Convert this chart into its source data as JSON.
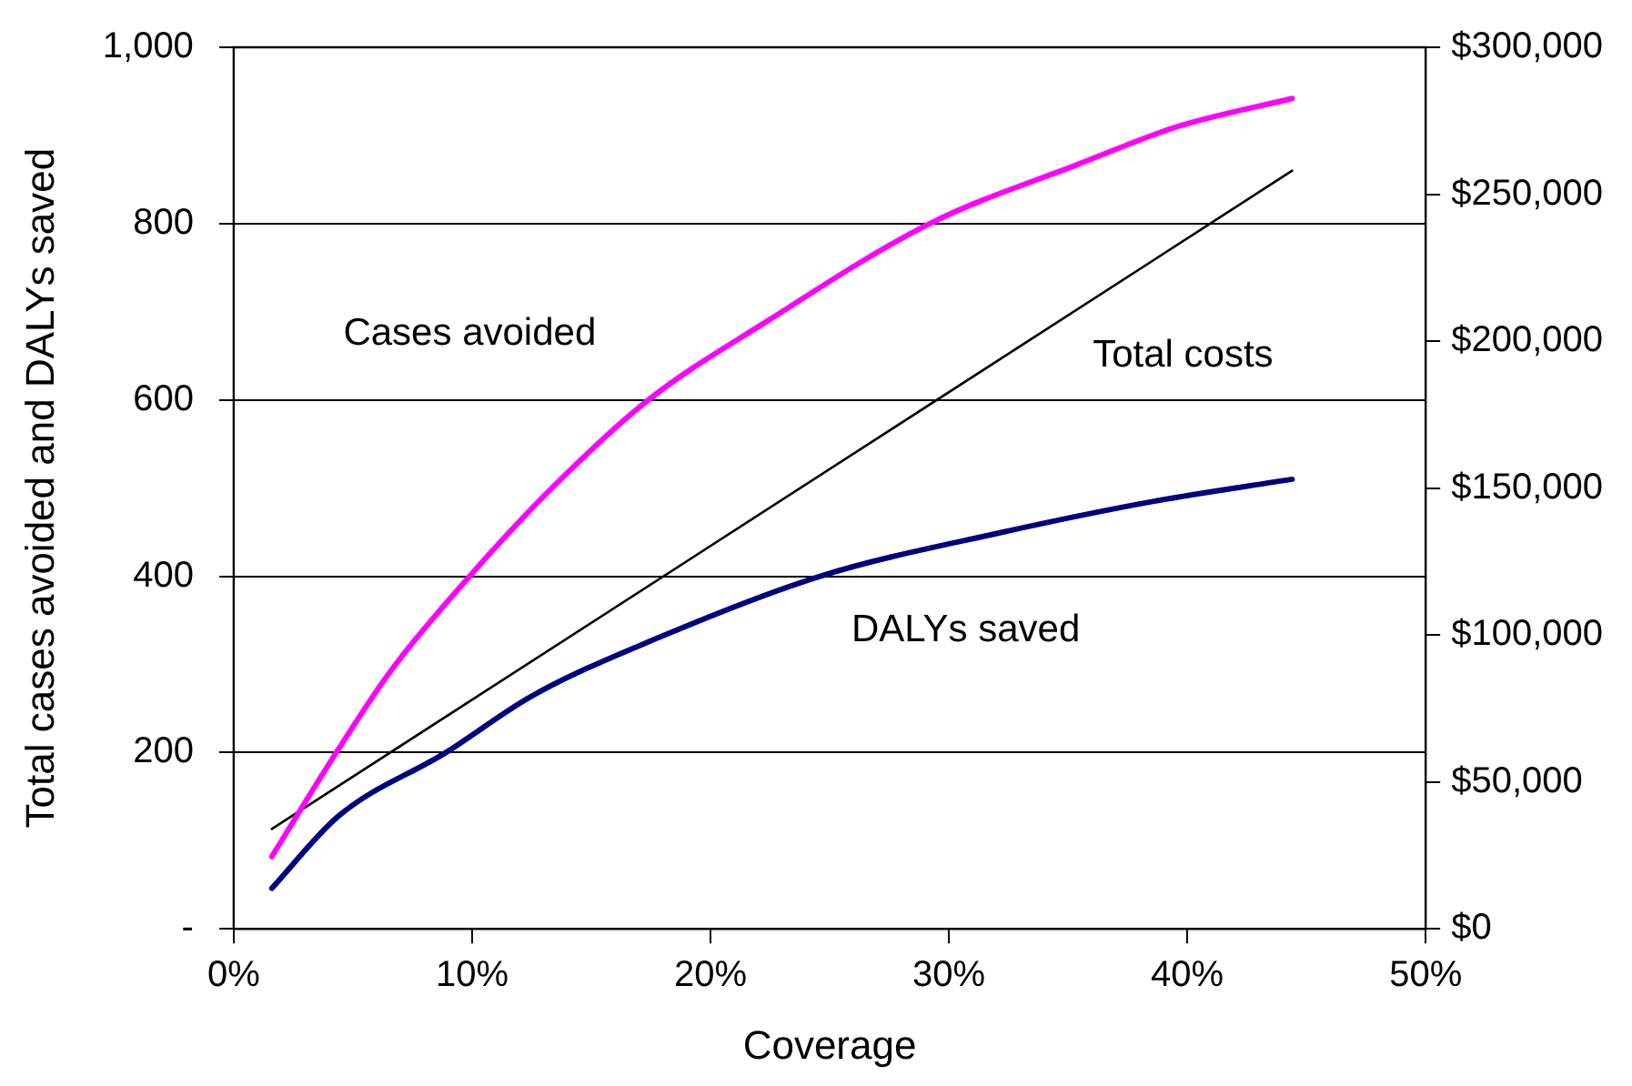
{
  "chart_data": {
    "type": "line",
    "xlabel": "Coverage",
    "ylabel": "Total cases avoided and DALYs saved",
    "xlim": [
      0,
      50
    ],
    "xticks": [
      {
        "value": 0,
        "label": "0%"
      },
      {
        "value": 10,
        "label": "10%"
      },
      {
        "value": 20,
        "label": "20%"
      },
      {
        "value": 30,
        "label": "30%"
      },
      {
        "value": 40,
        "label": "40%"
      },
      {
        "value": 50,
        "label": "50%"
      }
    ],
    "ylim": [
      0,
      1000
    ],
    "yticks": [
      {
        "value": 0,
        "label": "-"
      },
      200,
      400,
      600,
      800,
      {
        "value": 1000,
        "label": "1,000"
      }
    ],
    "y2lim": [
      0,
      300000
    ],
    "y2ticks": [
      {
        "value": 0,
        "label": "$0"
      },
      {
        "value": 50000,
        "label": "$50,000"
      },
      {
        "value": 100000,
        "label": "$100,000"
      },
      {
        "value": 150000,
        "label": "$150,000"
      },
      {
        "value": 200000,
        "label": "$200,000"
      },
      {
        "value": 250000,
        "label": "$250,000"
      },
      {
        "value": 300000,
        "label": "$300,000"
      }
    ],
    "grid": "y",
    "legend": false,
    "marker": "none",
    "line_style": "solid",
    "series": [
      {
        "name": "Cases avoided",
        "color": "#ff00ff",
        "x": [
          1.6,
          4.4,
          6.6,
          9.9,
          13.5,
          17.4,
          22.3,
          29.2,
          35.4,
          39.6,
          44.4
        ],
        "values": [
          82,
          204,
          293,
          400,
          504,
          600,
          688,
          800,
          867,
          910,
          942
        ]
      },
      {
        "name": "Total costs",
        "color": "#000000",
        "axis": "y2",
        "x": [
          1.6,
          44.4
        ],
        "values": [
          34000,
          258000
        ]
      },
      {
        "name": "DALYs saved",
        "color": "#000080",
        "x": [
          1.6,
          4.4,
          8.9,
          12.5,
          17.7,
          24.6,
          32.1,
          38.6,
          44.4
        ],
        "values": [
          46,
          128,
          200,
          264,
          329,
          400,
          449,
          485,
          510
        ]
      }
    ]
  }
}
